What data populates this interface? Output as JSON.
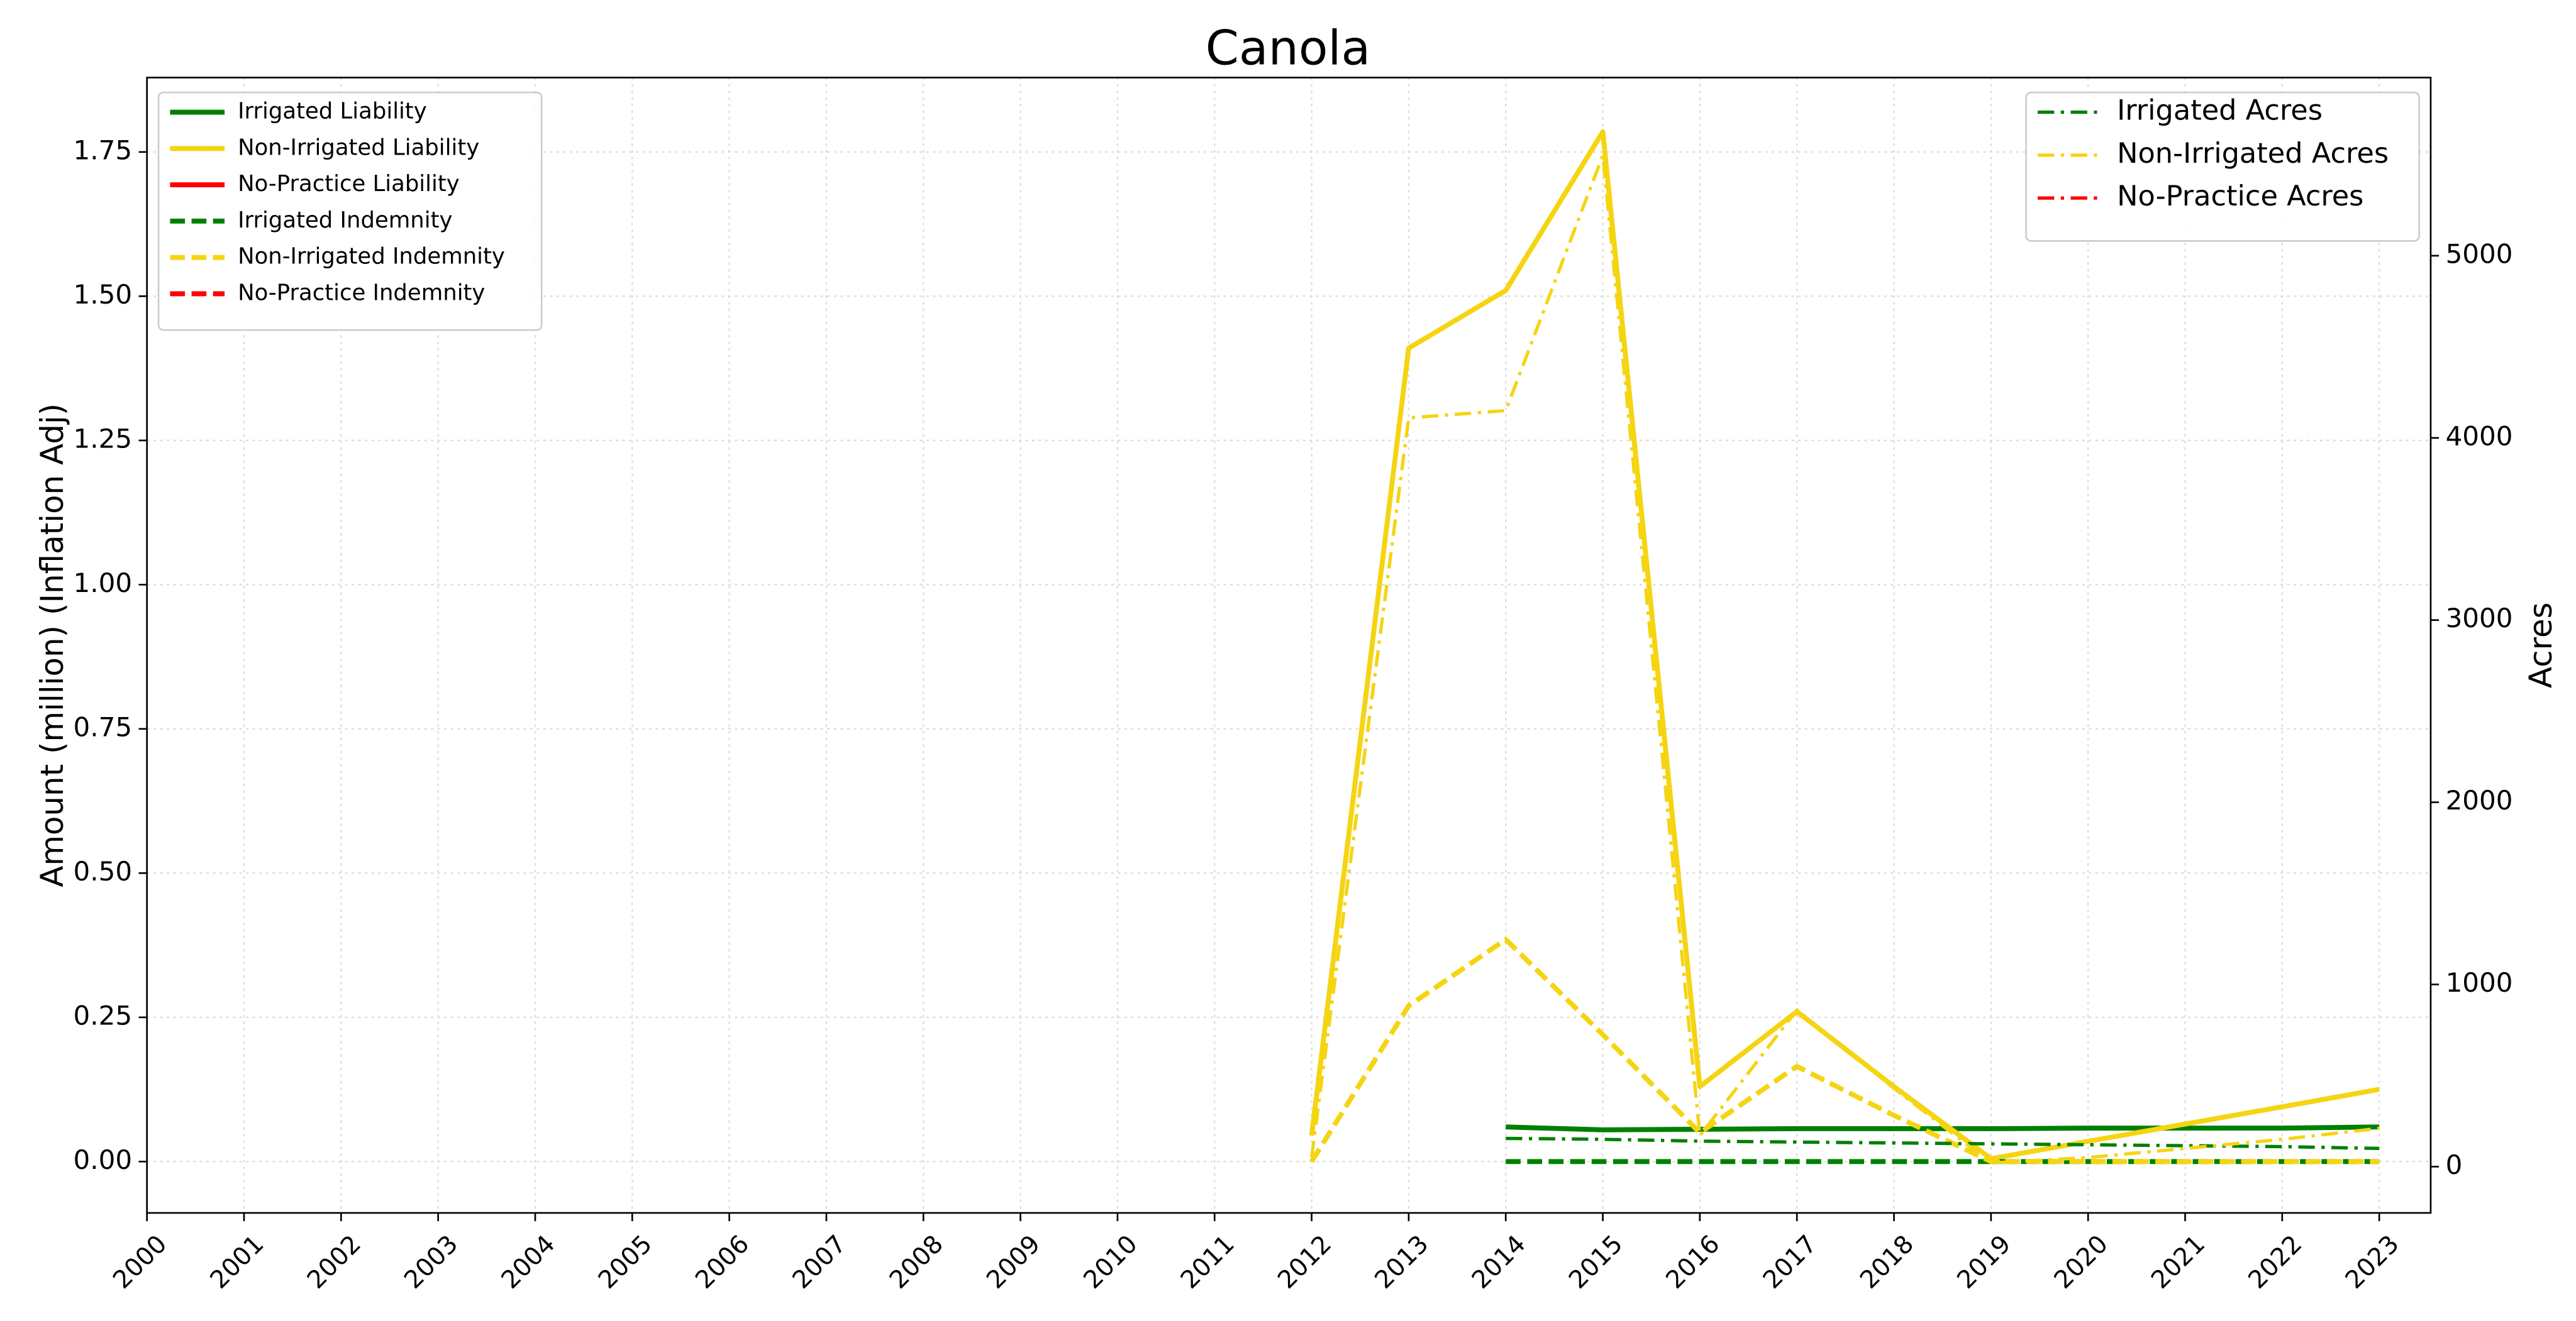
{
  "chart_data": {
    "type": "line",
    "title": "Canola",
    "ylabel": "Amount (million) (Inflation Adj)",
    "y2label": "Acres",
    "x": [
      2000,
      2001,
      2002,
      2003,
      2004,
      2005,
      2006,
      2007,
      2008,
      2009,
      2010,
      2011,
      2012,
      2013,
      2014,
      2015,
      2016,
      2017,
      2018,
      2019,
      2020,
      2021,
      2022,
      2023
    ],
    "xlim": [
      2000,
      2023.53
    ],
    "xticks": [
      2000,
      2001,
      2002,
      2003,
      2004,
      2005,
      2006,
      2007,
      2008,
      2009,
      2010,
      2011,
      2012,
      2013,
      2014,
      2015,
      2016,
      2017,
      2018,
      2019,
      2020,
      2021,
      2022,
      2023
    ],
    "ylim": [
      -0.089,
      1.879
    ],
    "yticks": [
      {
        "value": 0,
        "label": "0.00"
      },
      {
        "value": 0.25,
        "label": "0.25"
      },
      {
        "value": 0.5,
        "label": "0.50"
      },
      {
        "value": 0.75,
        "label": "0.75"
      },
      {
        "value": 1,
        "label": "1.00"
      },
      {
        "value": 1.25,
        "label": "1.25"
      },
      {
        "value": 1.5,
        "label": "1.50"
      },
      {
        "value": 1.75,
        "label": "1.75"
      }
    ],
    "y2lim": [
      -254,
      5978
    ],
    "y2ticks": [
      0,
      1000,
      2000,
      3000,
      4000,
      5000
    ],
    "grid": true,
    "legend": "upper left",
    "legend2": "upper right",
    "series": [
      {
        "name": "Irrigated Liability",
        "color": "#008000",
        "linestyle": "solid",
        "values": [
          null,
          null,
          null,
          null,
          null,
          null,
          null,
          null,
          null,
          null,
          null,
          null,
          null,
          null,
          0.06,
          0.055,
          0.056,
          0.057,
          0.057,
          0.057,
          0.058,
          0.058,
          0.058,
          0.06
        ]
      },
      {
        "name": "Non-Irrigated Liability",
        "color": "#f5d412",
        "linestyle": "solid",
        "values": [
          null,
          null,
          null,
          null,
          null,
          null,
          null,
          null,
          null,
          null,
          null,
          null,
          0.045,
          1.41,
          1.51,
          1.785,
          0.13,
          0.26,
          0.13,
          0.005,
          0.035,
          0.065,
          0.095,
          0.125
        ]
      },
      {
        "name": "No-Practice Liability",
        "color": "#ff0000",
        "linestyle": "solid",
        "values": [
          null,
          null,
          null,
          null,
          null,
          null,
          null,
          null,
          null,
          null,
          null,
          null,
          null,
          null,
          null,
          null,
          null,
          null,
          null,
          null,
          null,
          null,
          null,
          null
        ]
      },
      {
        "name": "Irrigated Indemnity",
        "color": "#008000",
        "linestyle": "dashed",
        "values": [
          null,
          null,
          null,
          null,
          null,
          null,
          null,
          null,
          null,
          null,
          null,
          null,
          null,
          null,
          0,
          0,
          0,
          0,
          0,
          0,
          0,
          0,
          0,
          0
        ]
      },
      {
        "name": "Non-Irrigated Indemnity",
        "color": "#f5d412",
        "linestyle": "dashed",
        "values": [
          null,
          null,
          null,
          null,
          null,
          null,
          null,
          null,
          null,
          null,
          null,
          null,
          0,
          0.27,
          0.385,
          0.22,
          0.05,
          0.165,
          0.08,
          0,
          0,
          0,
          0,
          0
        ]
      },
      {
        "name": "No-Practice Indemnity",
        "color": "#ff0000",
        "linestyle": "dashed",
        "values": [
          null,
          null,
          null,
          null,
          null,
          null,
          null,
          null,
          null,
          null,
          null,
          null,
          null,
          null,
          null,
          null,
          null,
          null,
          null,
          null,
          null,
          null,
          null,
          null
        ]
      },
      {
        "name": "Irrigated Acres",
        "color": "#008000",
        "linestyle": "dashdot",
        "axis": "y2",
        "values": [
          null,
          null,
          null,
          null,
          null,
          null,
          null,
          null,
          null,
          null,
          null,
          null,
          null,
          null,
          155,
          150,
          140,
          135,
          130,
          125,
          120,
          115,
          110,
          100
        ]
      },
      {
        "name": "Non-Irrigated Acres",
        "color": "#f5d412",
        "linestyle": "dashdot",
        "axis": "y2",
        "values": [
          null,
          null,
          null,
          null,
          null,
          null,
          null,
          null,
          null,
          null,
          null,
          null,
          50,
          4110,
          4150,
          5550,
          170,
          860,
          430,
          20,
          50,
          100,
          150,
          210
        ]
      },
      {
        "name": "No-Practice Acres",
        "color": "#ff0000",
        "linestyle": "dashdot",
        "axis": "y2",
        "values": [
          null,
          null,
          null,
          null,
          null,
          null,
          null,
          null,
          null,
          null,
          null,
          null,
          null,
          null,
          null,
          null,
          null,
          null,
          null,
          null,
          null,
          null,
          null,
          null
        ]
      }
    ]
  }
}
